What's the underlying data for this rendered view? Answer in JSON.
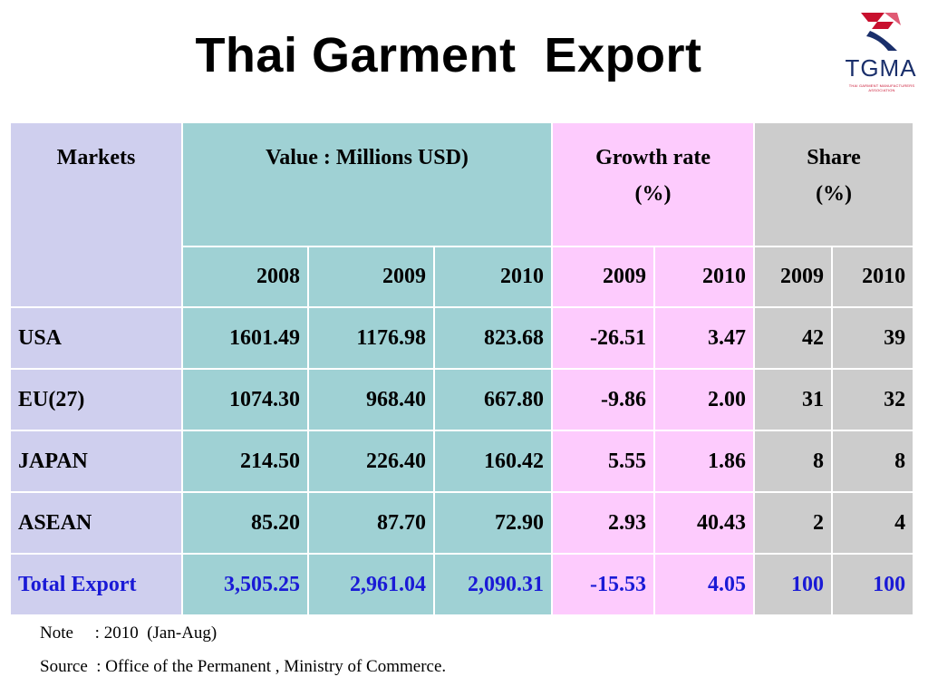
{
  "slide": {
    "title": "Thai Garment  Export",
    "logo": {
      "text": "TGMA",
      "subtext": "THAI GARMENT MANUFACTURERS ASSOCIATION"
    }
  },
  "table": {
    "headers": {
      "markets": "Markets",
      "value": "Value : Millions USD)",
      "growth_line1": "Growth  rate",
      "growth_line2": "(%)",
      "share_line1": "Share",
      "share_line2": "(%)"
    },
    "years": {
      "value": [
        "2008",
        "2009",
        "2010"
      ],
      "growth": [
        "2009",
        "2010"
      ],
      "share": [
        "2009",
        "2010"
      ]
    },
    "rows": [
      {
        "market": "USA",
        "v2008": "1601.49",
        "v2009": "1176.98",
        "v2010": "823.68",
        "g2009": "-26.51",
        "g2010": "3.47",
        "s2009": "42",
        "s2010": "39"
      },
      {
        "market": "EU(27)",
        "v2008": "1074.30",
        "v2009": "968.40",
        "v2010": "667.80",
        "g2009": "-9.86",
        "g2010": "2.00",
        "s2009": "31",
        "s2010": "32"
      },
      {
        "market": "JAPAN",
        "v2008": "214.50",
        "v2009": "226.40",
        "v2010": "160.42",
        "g2009": "5.55",
        "g2010": "1.86",
        "s2009": "8",
        "s2010": "8"
      },
      {
        "market": "ASEAN",
        "v2008": "85.20",
        "v2009": "87.70",
        "v2010": "72.90",
        "g2009": "2.93",
        "g2010": "40.43",
        "s2009": "2",
        "s2010": "4"
      }
    ],
    "total": {
      "market": "Total Export",
      "v2008": "3,505.25",
      "v2009": "2,961.04",
      "v2010": "2,090.31",
      "g2009": "-15.53",
      "g2010": "4.05",
      "s2009": "100",
      "s2010": "100"
    }
  },
  "notes": {
    "note": "Note     : 2010  (Jan-Aug)",
    "source": "Source  : Office of the Permanent , Ministry of Commerce."
  },
  "colors": {
    "markets_bg": "#cfcfee",
    "value_bg": "#9fd1d4",
    "growth_bg": "#fdcbfd",
    "share_bg": "#cccccc",
    "total_text": "#1a1ad6"
  }
}
